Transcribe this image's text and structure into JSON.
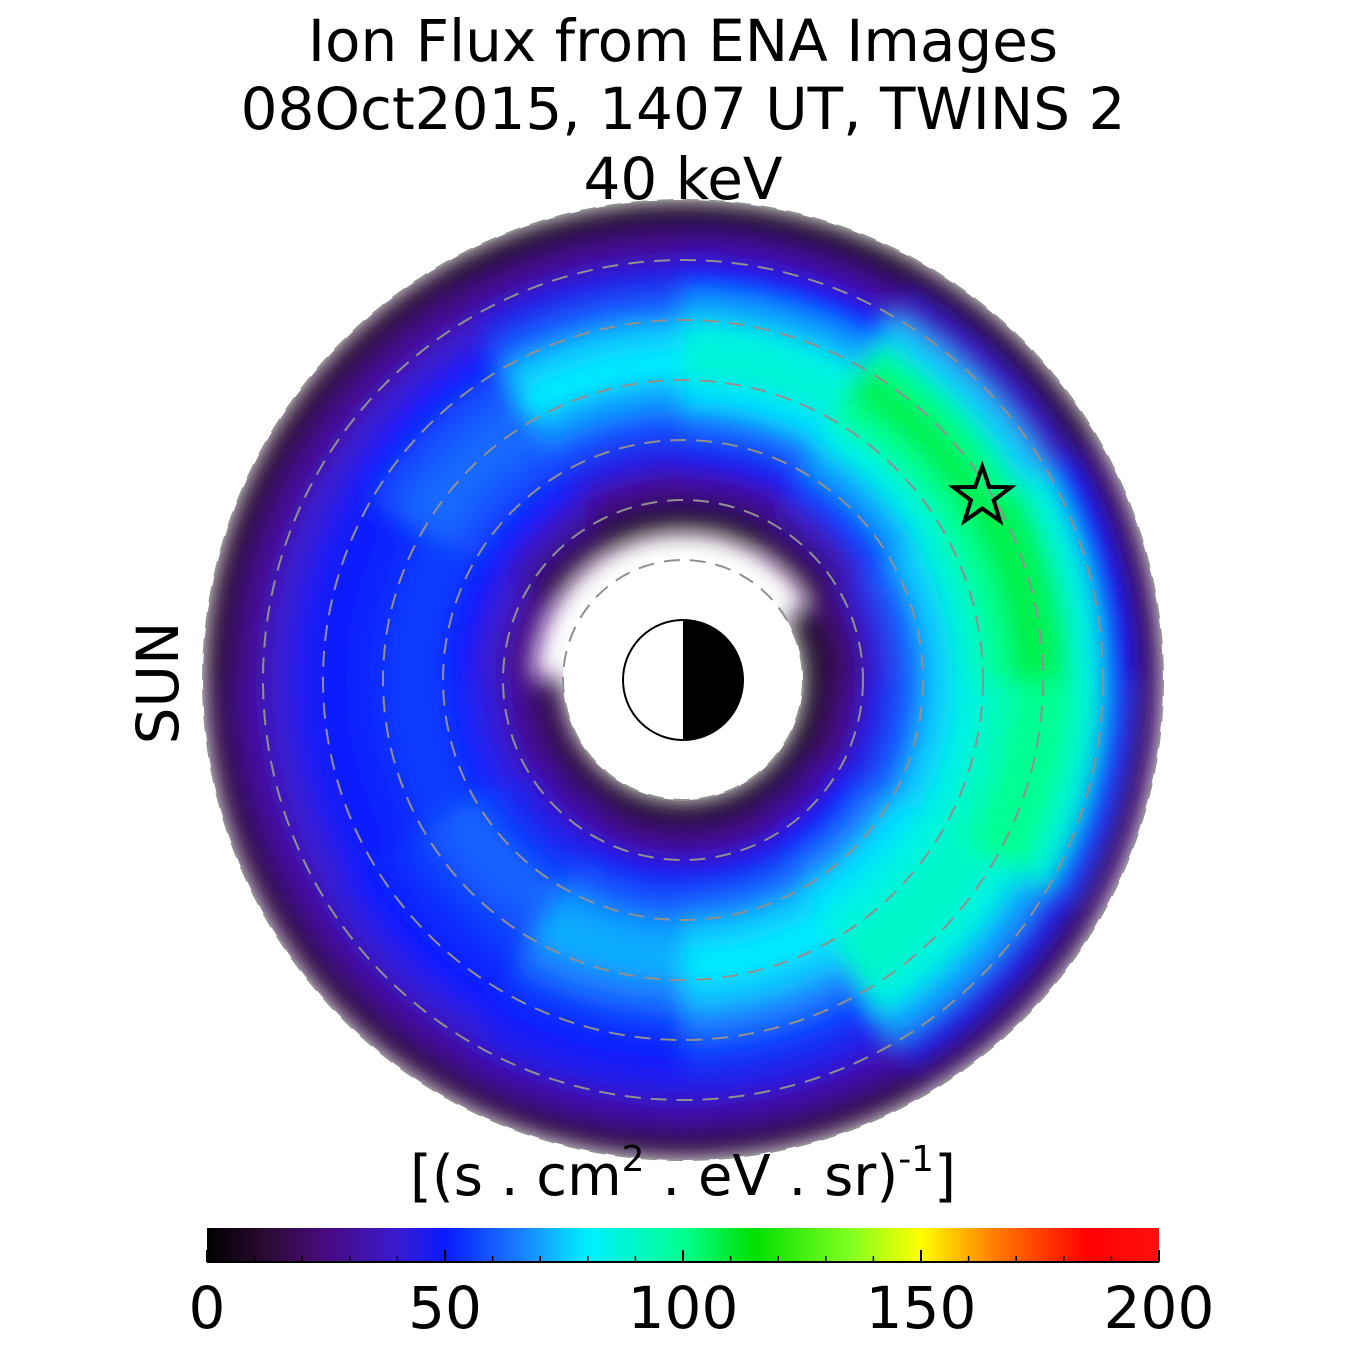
{
  "chart_data": {
    "type": "polar_heatmap",
    "title": "Ion Flux from  ENA Images",
    "subtitle": "08Oct2015, 1407 UT,  TWINS 2",
    "energy_label": "40 keV",
    "sun_label": "SUN",
    "sun_color": "#ffa500",
    "r_edges": [
      2,
      2.5,
      3,
      3.5,
      4,
      4.5,
      5,
      5.5,
      6,
      6.5,
      7,
      7.5,
      8
    ],
    "mlt_edges": [
      0,
      2,
      4,
      6,
      8,
      10,
      12,
      14,
      16,
      18,
      20,
      22,
      24
    ],
    "values": [
      [
        8,
        25,
        45,
        60,
        75,
        85,
        92,
        100,
        100,
        88,
        55,
        20
      ],
      [
        10,
        30,
        50,
        65,
        78,
        85,
        90,
        90,
        85,
        70,
        45,
        18
      ],
      [
        10,
        28,
        48,
        62,
        75,
        80,
        75,
        65,
        55,
        45,
        32,
        15
      ],
      [
        10,
        28,
        48,
        60,
        70,
        72,
        65,
        55,
        50,
        45,
        32,
        15
      ],
      [
        12,
        30,
        45,
        55,
        62,
        60,
        55,
        52,
        50,
        42,
        30,
        15
      ],
      [
        15,
        28,
        42,
        52,
        55,
        55,
        52,
        50,
        48,
        40,
        30,
        15
      ],
      [
        null,
        25,
        40,
        50,
        55,
        55,
        52,
        50,
        48,
        40,
        28,
        12
      ],
      [
        null,
        15,
        35,
        50,
        58,
        62,
        62,
        58,
        50,
        40,
        28,
        12
      ],
      [
        null,
        10,
        28,
        45,
        58,
        70,
        80,
        75,
        60,
        45,
        28,
        10
      ],
      [
        null,
        10,
        30,
        48,
        62,
        78,
        88,
        85,
        70,
        50,
        30,
        10
      ],
      [
        null,
        15,
        35,
        55,
        70,
        85,
        100,
        108,
        100,
        75,
        40,
        12
      ],
      [
        8,
        22,
        42,
        60,
        75,
        88,
        100,
        108,
        105,
        85,
        50,
        18
      ]
    ],
    "rgrid": [
      2,
      3,
      4,
      5,
      6,
      7,
      8
    ],
    "satellite": {
      "r": 5.85,
      "mlt": 21.9
    },
    "colorscale": [
      [
        0,
        "#000000"
      ],
      [
        12,
        "#2a0a30"
      ],
      [
        25,
        "#4a0a80"
      ],
      [
        40,
        "#3a1ad0"
      ],
      [
        50,
        "#0a1aff"
      ],
      [
        65,
        "#1a7aff"
      ],
      [
        80,
        "#00f0ff"
      ],
      [
        100,
        "#00ff90"
      ],
      [
        115,
        "#00e000"
      ],
      [
        135,
        "#80ff20"
      ],
      [
        150,
        "#ffff00"
      ],
      [
        165,
        "#ff8000"
      ],
      [
        185,
        "#ff0000"
      ],
      [
        200,
        "#ff1010"
      ]
    ],
    "colorbar_label": [
      "[(s . cm",
      "2",
      "  . eV . sr)",
      "-1",
      "]"
    ],
    "clim": [
      0,
      200
    ],
    "cticks": [
      0,
      50,
      100,
      150,
      200
    ],
    "cticks_minor": [
      10,
      20,
      30,
      40,
      60,
      70,
      80,
      90,
      110,
      120,
      130,
      140,
      160,
      170,
      180,
      190
    ]
  }
}
